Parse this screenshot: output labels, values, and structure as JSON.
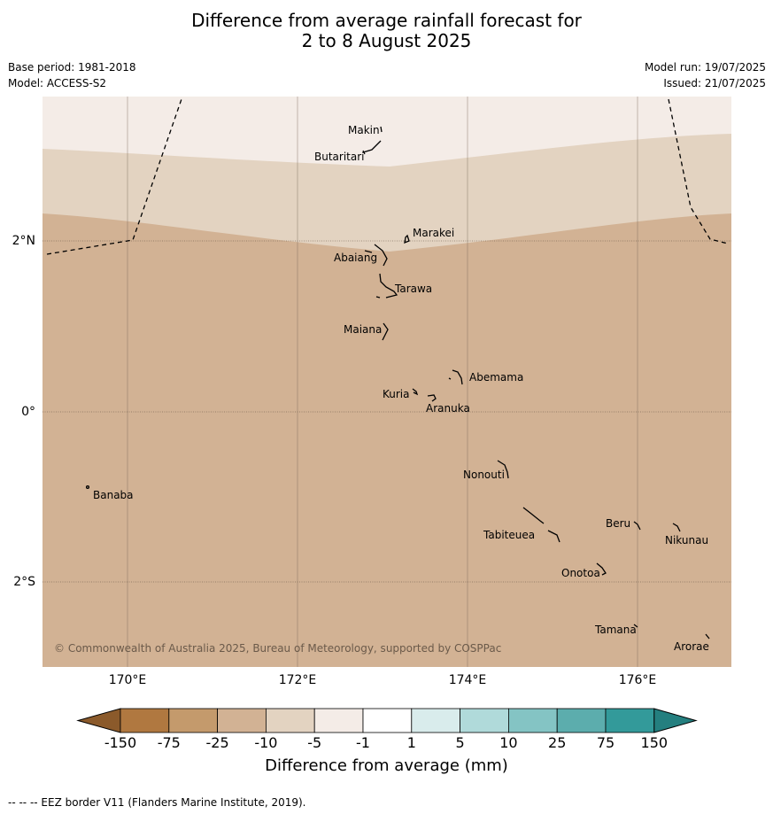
{
  "title_line1": "Difference from average rainfall forecast for",
  "title_line2": "2 to 8 August 2025",
  "base_period": "Base period: 1981-2018",
  "model": "Model: ACCESS-S2",
  "model_run": "Model run: 19/07/2025",
  "issued": "Issued: 21/07/2025",
  "copyright": "© Commonwealth of Australia 2025, Bureau of Meteorology, supported by COSPPac",
  "footer": "-- -- -- EEZ border V11 (Flanders Marine Institute, 2019).",
  "lon_labels": [
    "170°E",
    "172°E",
    "174°E",
    "176°E"
  ],
  "lat_labels": [
    "2°N",
    "0°",
    "2°S"
  ],
  "places": [
    {
      "name": "Makin"
    },
    {
      "name": "Butaritari"
    },
    {
      "name": "Marakei"
    },
    {
      "name": "Abaiang"
    },
    {
      "name": "Tarawa"
    },
    {
      "name": "Maiana"
    },
    {
      "name": "Abemama"
    },
    {
      "name": "Kuria"
    },
    {
      "name": "Aranuka"
    },
    {
      "name": "Banaba"
    },
    {
      "name": "Nonouti"
    },
    {
      "name": "Beru"
    },
    {
      "name": "Tabiteuea"
    },
    {
      "name": "Nikunau"
    },
    {
      "name": "Onotoa"
    },
    {
      "name": "Tamana"
    },
    {
      "name": "Arorae"
    }
  ],
  "colorbar": {
    "title": "Difference from average (mm)",
    "tick_labels": [
      "-150",
      "-75",
      "-25",
      "-10",
      "-5",
      "-1",
      "1",
      "5",
      "10",
      "25",
      "75",
      "150"
    ],
    "colors": [
      "#8b5a2b",
      "#b07840",
      "#c49a6c",
      "#d2b294",
      "#e3d3c1",
      "#f4ece7",
      "#ffffff",
      "#d9ecec",
      "#b0dada",
      "#84c4c4",
      "#5cadad",
      "#339a9a",
      "#247f7f"
    ]
  },
  "map_bands": {
    "light": "#f4ece7",
    "mid": "#e3d3c1",
    "dark": "#d2b294"
  }
}
